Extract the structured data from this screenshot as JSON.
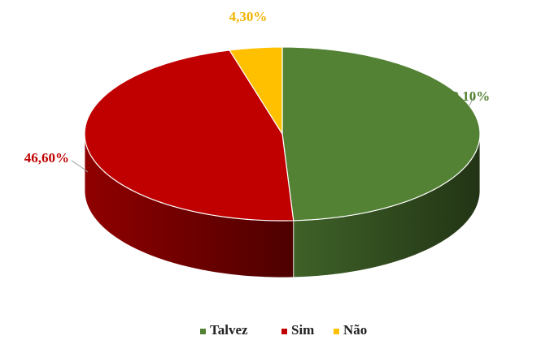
{
  "chart_data": {
    "type": "pie3d",
    "categories": [
      "Talvez",
      "Sim",
      "Não"
    ],
    "values": [
      49.1,
      46.6,
      4.3
    ],
    "value_labels": [
      "49,10%",
      "46,60%",
      "4,30%"
    ],
    "colors": [
      "#548235",
      "#c00000",
      "#ffc000"
    ],
    "legend": "bottom"
  }
}
